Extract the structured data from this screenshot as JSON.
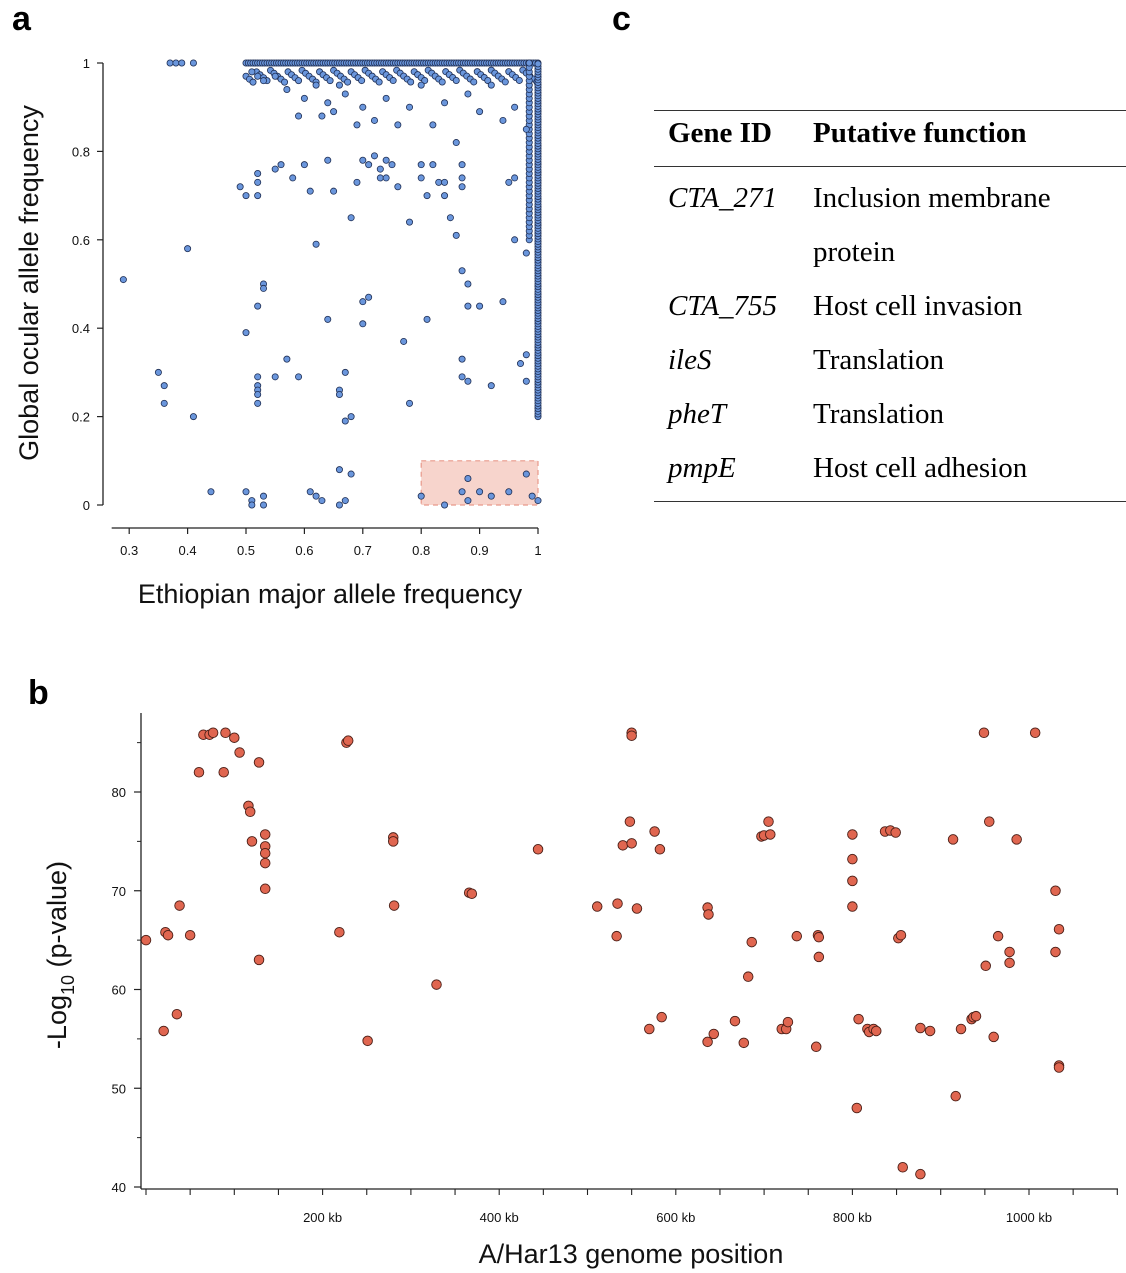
{
  "figure": {
    "panel_a_label": "a",
    "panel_b_label": "b",
    "panel_c_label": "c"
  },
  "table": {
    "headers": [
      "Gene ID",
      "Putative function"
    ],
    "rows": [
      {
        "gene": "CTA_271",
        "function": "Inclusion membrane"
      },
      {
        "gene": "",
        "function": "protein"
      },
      {
        "gene": "CTA_755",
        "function": "Host cell invasion"
      },
      {
        "gene": "ileS",
        "function": "Translation"
      },
      {
        "gene": "pheT",
        "function": "Translation"
      },
      {
        "gene": "pmpE",
        "function": "Host cell adhesion"
      }
    ]
  },
  "chart_data": [
    {
      "type": "scatter",
      "panel": "a",
      "title": "",
      "xlabel": "Ethiopian major allele frequency",
      "ylabel": "Global ocular allele frequency",
      "xlim": [
        0.27,
        1.0
      ],
      "ylim": [
        0,
        1
      ],
      "xticks": [
        "0.3",
        "0.4",
        "0.5",
        "0.6",
        "0.7",
        "0.8",
        "0.9",
        "1"
      ],
      "yticks": [
        "0",
        "0.2",
        "0.4",
        "0.6",
        "0.8",
        "1"
      ],
      "point_color": "#6a96dc",
      "highlight_region": {
        "x": [
          0.8,
          1.0
        ],
        "y": [
          0,
          0.1
        ],
        "color": "#f7d4cc"
      },
      "points": [
        [
          0.37,
          1.0
        ],
        [
          0.38,
          1.0
        ],
        [
          0.39,
          1.0
        ],
        [
          0.41,
          1.0
        ],
        [
          0.29,
          0.51
        ],
        [
          0.35,
          0.3
        ],
        [
          0.36,
          0.27
        ],
        [
          0.36,
          0.23
        ],
        [
          0.4,
          0.58
        ],
        [
          0.41,
          0.2
        ],
        [
          0.44,
          0.03
        ],
        [
          0.49,
          0.72
        ],
        [
          0.5,
          0.7
        ],
        [
          0.5,
          0.39
        ],
        [
          0.5,
          0.03
        ],
        [
          0.51,
          0.01
        ],
        [
          0.51,
          0.0
        ],
        [
          0.52,
          0.75
        ],
        [
          0.52,
          0.73
        ],
        [
          0.52,
          0.7
        ],
        [
          0.52,
          0.45
        ],
        [
          0.53,
          0.5
        ],
        [
          0.53,
          0.49
        ],
        [
          0.52,
          0.29
        ],
        [
          0.52,
          0.27
        ],
        [
          0.52,
          0.26
        ],
        [
          0.52,
          0.25
        ],
        [
          0.52,
          0.23
        ],
        [
          0.53,
          0.02
        ],
        [
          0.53,
          0.0
        ],
        [
          0.55,
          0.76
        ],
        [
          0.55,
          0.29
        ],
        [
          0.56,
          0.77
        ],
        [
          0.57,
          0.33
        ],
        [
          0.58,
          0.74
        ],
        [
          0.59,
          0.29
        ],
        [
          0.6,
          0.77
        ],
        [
          0.61,
          0.71
        ],
        [
          0.62,
          0.59
        ],
        [
          0.61,
          0.03
        ],
        [
          0.62,
          0.02
        ],
        [
          0.63,
          0.01
        ],
        [
          0.64,
          0.78
        ],
        [
          0.64,
          0.42
        ],
        [
          0.65,
          0.71
        ],
        [
          0.66,
          0.08
        ],
        [
          0.66,
          0.26
        ],
        [
          0.66,
          0.25
        ],
        [
          0.67,
          0.3
        ],
        [
          0.67,
          0.19
        ],
        [
          0.68,
          0.2
        ],
        [
          0.66,
          0.0
        ],
        [
          0.67,
          0.01
        ],
        [
          0.68,
          0.07
        ],
        [
          0.68,
          0.65
        ],
        [
          0.69,
          0.73
        ],
        [
          0.7,
          0.78
        ],
        [
          0.7,
          0.46
        ],
        [
          0.71,
          0.47
        ],
        [
          0.7,
          0.41
        ],
        [
          0.71,
          0.77
        ],
        [
          0.72,
          0.79
        ],
        [
          0.73,
          0.74
        ],
        [
          0.73,
          0.76
        ],
        [
          0.74,
          0.78
        ],
        [
          0.74,
          0.74
        ],
        [
          0.75,
          0.77
        ],
        [
          0.76,
          0.72
        ],
        [
          0.77,
          0.37
        ],
        [
          0.78,
          0.23
        ],
        [
          0.78,
          0.64
        ],
        [
          0.8,
          0.77
        ],
        [
          0.8,
          0.74
        ],
        [
          0.81,
          0.7
        ],
        [
          0.81,
          0.42
        ],
        [
          0.82,
          0.77
        ],
        [
          0.83,
          0.73
        ],
        [
          0.84,
          0.7
        ],
        [
          0.84,
          0.73
        ],
        [
          0.85,
          0.65
        ],
        [
          0.86,
          0.61
        ],
        [
          0.87,
          0.53
        ],
        [
          0.87,
          0.74
        ],
        [
          0.87,
          0.77
        ],
        [
          0.87,
          0.72
        ],
        [
          0.88,
          0.5
        ],
        [
          0.88,
          0.45
        ],
        [
          0.87,
          0.29
        ],
        [
          0.88,
          0.28
        ],
        [
          0.87,
          0.33
        ],
        [
          0.9,
          0.45
        ],
        [
          0.92,
          0.27
        ],
        [
          0.94,
          0.46
        ],
        [
          0.95,
          0.73
        ],
        [
          0.96,
          0.74
        ],
        [
          0.97,
          0.32
        ],
        [
          0.98,
          0.28
        ],
        [
          0.98,
          0.34
        ],
        [
          0.96,
          0.6
        ],
        [
          0.98,
          0.57
        ],
        [
          0.51,
          0.98
        ],
        [
          0.52,
          0.97
        ],
        [
          0.53,
          0.96
        ],
        [
          0.55,
          0.97
        ],
        [
          0.57,
          0.94
        ],
        [
          0.59,
          0.88
        ],
        [
          0.6,
          0.92
        ],
        [
          0.62,
          0.95
        ],
        [
          0.63,
          0.88
        ],
        [
          0.64,
          0.91
        ],
        [
          0.65,
          0.89
        ],
        [
          0.66,
          0.95
        ],
        [
          0.67,
          0.93
        ],
        [
          0.69,
          0.86
        ],
        [
          0.7,
          0.9
        ],
        [
          0.72,
          0.87
        ],
        [
          0.74,
          0.92
        ],
        [
          0.76,
          0.86
        ],
        [
          0.78,
          0.9
        ],
        [
          0.8,
          0.95
        ],
        [
          0.82,
          0.86
        ],
        [
          0.84,
          0.91
        ],
        [
          0.86,
          0.82
        ],
        [
          0.88,
          0.93
        ],
        [
          0.9,
          0.89
        ],
        [
          0.92,
          0.95
        ],
        [
          0.94,
          0.87
        ],
        [
          0.96,
          0.9
        ],
        [
          0.98,
          0.85
        ],
        [
          0.8,
          0.02
        ],
        [
          0.84,
          0.0
        ],
        [
          0.87,
          0.03
        ],
        [
          0.88,
          0.06
        ],
        [
          0.88,
          0.01
        ],
        [
          0.9,
          0.03
        ],
        [
          0.92,
          0.02
        ],
        [
          0.95,
          0.03
        ],
        [
          0.98,
          0.07
        ],
        [
          0.99,
          0.02
        ],
        [
          1.0,
          0.01
        ]
      ],
      "dense_regions": {
        "top_edge": {
          "x": [
            0.5,
            1.0
          ],
          "y": 1.0
        },
        "right_edge": {
          "x": 1.0,
          "y": [
            0.2,
            1.0
          ]
        }
      }
    },
    {
      "type": "scatter",
      "panel": "b",
      "title": "",
      "xlabel": "A/Har13 genome position",
      "ylabel": "-Log",
      "ylabel_sub": "10",
      "ylabel_suffix": " (p-value)",
      "xlim": [
        0,
        1100
      ],
      "ylim": [
        40,
        90
      ],
      "xticks": [
        "200 kb",
        "400 kb",
        "600 kb",
        "800 kb",
        "1000 kb"
      ],
      "xtick_values": [
        200,
        400,
        600,
        800,
        1000
      ],
      "yticks": [
        "40",
        "50",
        "60",
        "70",
        "80"
      ],
      "ytick_values": [
        40,
        50,
        60,
        70,
        80
      ],
      "point_color": "#e06650",
      "points": [
        [
          0,
          65
        ],
        [
          20,
          55.8
        ],
        [
          22,
          65.8
        ],
        [
          25,
          65.5
        ],
        [
          35,
          57.5
        ],
        [
          38,
          68.5
        ],
        [
          50,
          65.5
        ],
        [
          60,
          82
        ],
        [
          65,
          85.8
        ],
        [
          72,
          85.8
        ],
        [
          76,
          86
        ],
        [
          88,
          82
        ],
        [
          90,
          86
        ],
        [
          100,
          85.5
        ],
        [
          106,
          84
        ],
        [
          116,
          78.6
        ],
        [
          118,
          78
        ],
        [
          120,
          75
        ],
        [
          128,
          83
        ],
        [
          128,
          63
        ],
        [
          135,
          75.7
        ],
        [
          135,
          74.5
        ],
        [
          135,
          73.8
        ],
        [
          135,
          72.8
        ],
        [
          135,
          70.2
        ],
        [
          219,
          65.8
        ],
        [
          227,
          85
        ],
        [
          229,
          85.2
        ],
        [
          251,
          54.8
        ],
        [
          280,
          75.4
        ],
        [
          280,
          75
        ],
        [
          281,
          68.5
        ],
        [
          329,
          60.5
        ],
        [
          366,
          69.8
        ],
        [
          369,
          69.7
        ],
        [
          444,
          74.2
        ],
        [
          511,
          68.4
        ],
        [
          533,
          65.4
        ],
        [
          534,
          68.7
        ],
        [
          540,
          74.6
        ],
        [
          548,
          77
        ],
        [
          550,
          74.8
        ],
        [
          550,
          86
        ],
        [
          550,
          85.7
        ],
        [
          556,
          68.2
        ],
        [
          570,
          56
        ],
        [
          576,
          76
        ],
        [
          582,
          74.2
        ],
        [
          584,
          57.2
        ],
        [
          636,
          54.7
        ],
        [
          636,
          68.3
        ],
        [
          637,
          67.6
        ],
        [
          643,
          55.5
        ],
        [
          667,
          56.8
        ],
        [
          677,
          54.6
        ],
        [
          682,
          61.3
        ],
        [
          686,
          64.8
        ],
        [
          697,
          75.5
        ],
        [
          700,
          75.6
        ],
        [
          705,
          77
        ],
        [
          707,
          75.7
        ],
        [
          720,
          56
        ],
        [
          725,
          56
        ],
        [
          727,
          56.7
        ],
        [
          737,
          65.4
        ],
        [
          759,
          54.2
        ],
        [
          761,
          65.5
        ],
        [
          762,
          65.3
        ],
        [
          762,
          63.3
        ],
        [
          800,
          75.7
        ],
        [
          800,
          73.2
        ],
        [
          800,
          71
        ],
        [
          800,
          68.4
        ],
        [
          805,
          48
        ],
        [
          807,
          57
        ],
        [
          817,
          56
        ],
        [
          819,
          55.7
        ],
        [
          824,
          56
        ],
        [
          827,
          55.8
        ],
        [
          837,
          76
        ],
        [
          843,
          76.1
        ],
        [
          849,
          75.9
        ],
        [
          852,
          65.2
        ],
        [
          855,
          65.5
        ],
        [
          857,
          42
        ],
        [
          877,
          41.3
        ],
        [
          877,
          56.1
        ],
        [
          888,
          55.8
        ],
        [
          914,
          75.2
        ],
        [
          917,
          49.2
        ],
        [
          923,
          56
        ],
        [
          935,
          57
        ],
        [
          937,
          57.2
        ],
        [
          940,
          57.3
        ],
        [
          949,
          86
        ],
        [
          951,
          62.4
        ],
        [
          955,
          77
        ],
        [
          960,
          55.2
        ],
        [
          965,
          65.4
        ],
        [
          978,
          63.8
        ],
        [
          978,
          62.7
        ],
        [
          986,
          75.2
        ],
        [
          1007,
          86
        ],
        [
          1030,
          70
        ],
        [
          1030,
          63.8
        ],
        [
          1034,
          66.1
        ],
        [
          1034,
          52.3
        ],
        [
          1034,
          52.1
        ]
      ]
    }
  ]
}
